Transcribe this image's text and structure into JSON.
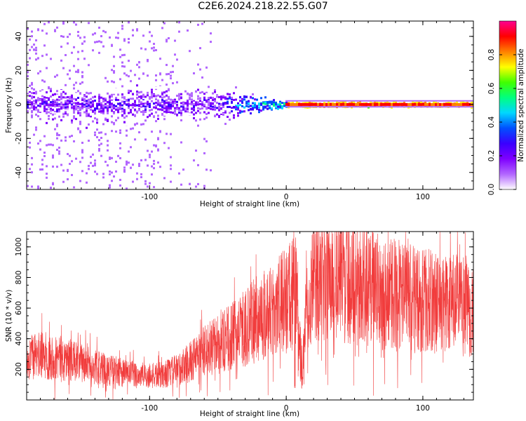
{
  "title": "C2E6.2024.218.22.55.G07",
  "colors": {
    "snr_line": "#f03232",
    "spectrogram_palette": [
      "#ffffff",
      "#e6ccff",
      "#b266ff",
      "#7f00ff",
      "#3a00ff",
      "#0050ff",
      "#00d7ff",
      "#00ff80",
      "#40ff00",
      "#ffff00",
      "#ff8000",
      "#ff0000",
      "#ff0090"
    ]
  },
  "chart_data": [
    {
      "type": "heatmap",
      "title": "C2E6.2024.218.22.55.G07",
      "xlabel": "Height of straight line (km)",
      "ylabel": "Frequency (Hz)",
      "xlim": [
        -190,
        137
      ],
      "ylim": [
        -50,
        49
      ],
      "xticks": [
        -100,
        0,
        100
      ],
      "xtick_labels": [
        "-100",
        "0",
        "100"
      ],
      "yticks": [
        -40,
        -20,
        0,
        20,
        40
      ],
      "ytick_labels": [
        "-40",
        "-20",
        "0",
        "20",
        "40"
      ],
      "grid": false,
      "colorbar": {
        "label": "Normalized spectral amplitude",
        "range": [
          0.0,
          1.0
        ],
        "ticks": [
          0.0,
          0.2,
          0.4,
          0.6,
          0.8
        ],
        "tick_labels": [
          "0.0",
          "0.2",
          "0.4",
          "0.6",
          "0.8"
        ]
      },
      "features": [
        {
          "name": "scattered noise",
          "x_range": [
            -190,
            -60
          ],
          "freq_spread_hz": 50,
          "amplitude": 0.1
        },
        {
          "name": "broadband core",
          "x_range": [
            -190,
            -40
          ],
          "freq_spread_hz": 8,
          "amplitude": 0.25
        },
        {
          "name": "converging band",
          "x_range": [
            -50,
            -10
          ],
          "freq_spread_hz": 3,
          "amplitude": 0.45
        },
        {
          "name": "narrow carrier",
          "x_range": [
            0,
            137
          ],
          "freq_spread_hz": 1,
          "amplitude": 0.92
        }
      ]
    },
    {
      "type": "line",
      "xlabel": "Height of straight line (km)",
      "ylabel": "SNR (10 * v/v)",
      "xlim": [
        -190,
        137
      ],
      "ylim": [
        0,
        1100
      ],
      "xticks": [
        -100,
        0,
        100
      ],
      "xtick_labels": [
        "-100",
        "0",
        "100"
      ],
      "yticks": [
        200,
        400,
        600,
        800,
        1000
      ],
      "ytick_labels": [
        "200",
        "400",
        "600",
        "800",
        "1000"
      ],
      "grid": false,
      "series": [
        {
          "x": [
            -190,
            -180,
            -170,
            -160,
            -150,
            -140,
            -130,
            -120,
            -110,
            -100,
            -90,
            -80,
            -70,
            -60,
            -50,
            -40,
            -30,
            -20,
            -10,
            0,
            5,
            8,
            10,
            12,
            15,
            20,
            30,
            40,
            50,
            60,
            70,
            80,
            90,
            100,
            110,
            120,
            130,
            137
          ],
          "values": [
            270,
            290,
            280,
            265,
            240,
            215,
            195,
            180,
            165,
            155,
            165,
            195,
            250,
            320,
            360,
            410,
            470,
            540,
            590,
            650,
            700,
            640,
            330,
            250,
            680,
            760,
            800,
            810,
            770,
            730,
            700,
            690,
            670,
            650,
            640,
            625,
            615,
            600
          ]
        }
      ]
    }
  ]
}
